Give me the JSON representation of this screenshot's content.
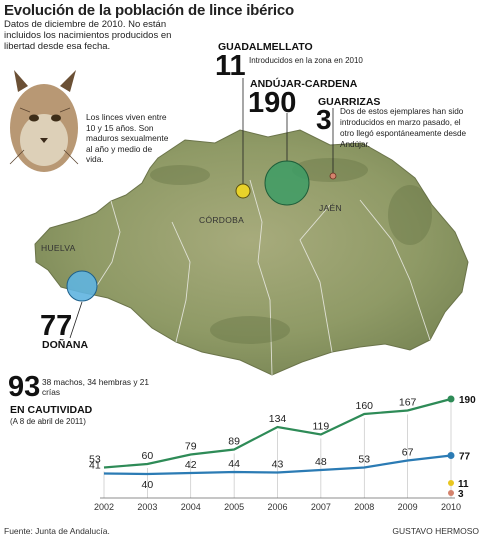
{
  "title": "Evolución de la población de lince ibérico",
  "intro": "Datos de diciembre de 2010. No están incluidos los nacimientos producidos en libertad desde esa fecha.",
  "lynx_note": "Los linces viven entre 10 y 15 años. Son maduros sexualmente al año y medio de vida.",
  "map": {
    "provinces": [
      "CÓRDOBA",
      "JAÉN",
      "HUELVA"
    ],
    "guadalmellato": {
      "value": "11",
      "name": "GUADALMELLATO",
      "note": "Introducidos en la zona en 2010"
    },
    "andujar": {
      "value": "190",
      "name": "ANDÚJAR-CARDENA"
    },
    "guarrizas": {
      "value": "3",
      "name": "GUARRIZAS",
      "note": "Dos de estos ejemplares han sido introducidos en marzo pasado, el otro llegó espontáneamente desde Andújar."
    },
    "donana": {
      "value": "77",
      "name": "DOÑANA"
    }
  },
  "captivity": {
    "value": "93",
    "breakdown": "38 machos, 34 hembras y 21 crías",
    "label": "EN CAUTIVIDAD",
    "date": "(A 8 de abril de 2011)"
  },
  "colors": {
    "andujar": "#2e8b57",
    "donana": "#2b7bb4",
    "guadalmellato": "#e8c620",
    "guarrizas": "#d4836d"
  },
  "chart_data": {
    "type": "line",
    "x": [
      "2002",
      "2003",
      "2004",
      "2005",
      "2006",
      "2007",
      "2008",
      "2009",
      "2010"
    ],
    "series": [
      {
        "name": "ANDÚJAR-CARDENA",
        "values": [
          53,
          60,
          79,
          89,
          134,
          119,
          160,
          167,
          190
        ]
      },
      {
        "name": "DOÑANA",
        "values": [
          41,
          40,
          42,
          44,
          43,
          48,
          53,
          67,
          77
        ]
      }
    ],
    "extra_points": [
      {
        "name": "GUADALMELLATO",
        "x": "2010",
        "value": 11
      },
      {
        "name": "GUARRIZAS",
        "x": "2010",
        "value": 3
      }
    ],
    "ylim": [
      0,
      200
    ]
  },
  "footer": {
    "source": "Fuente: Junta de Andalucía.",
    "author": "GUSTAVO HERMOSO"
  }
}
